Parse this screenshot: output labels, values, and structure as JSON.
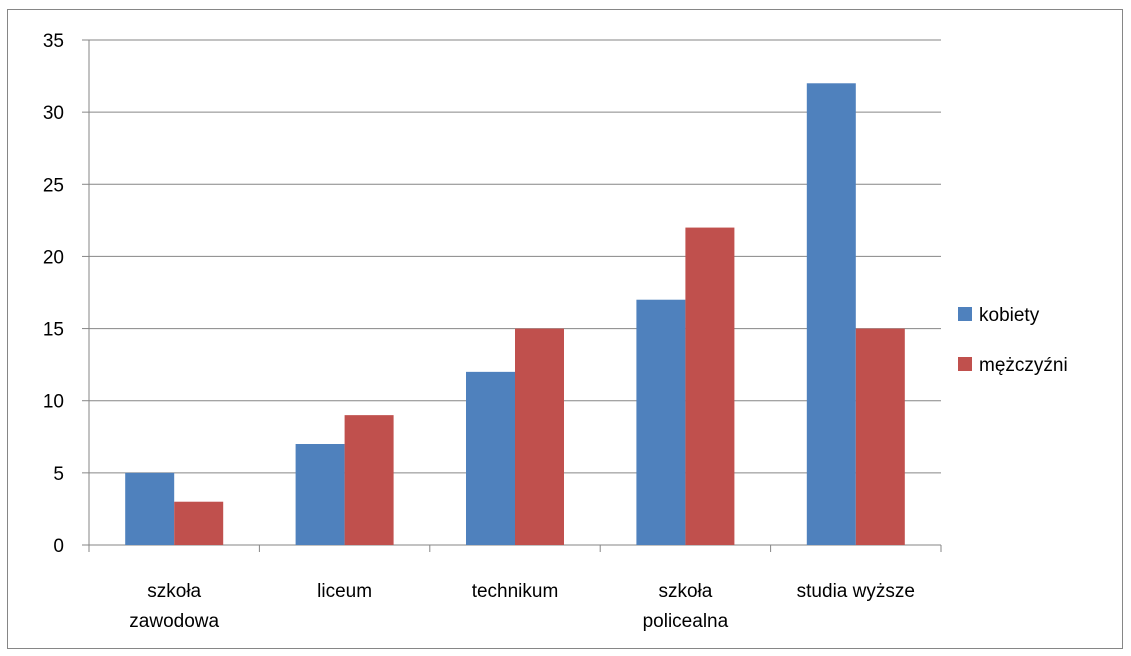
{
  "chart_data": {
    "type": "bar",
    "categories": [
      [
        "szkoła",
        "zawodowa"
      ],
      [
        "liceum"
      ],
      [
        "technikum"
      ],
      [
        "szkoła",
        "policealna"
      ],
      [
        "studia wyższe"
      ]
    ],
    "series": [
      {
        "name": "kobiety",
        "color": "#4F81BD",
        "values": [
          5,
          7,
          12,
          17,
          32
        ]
      },
      {
        "name": "mężczyźni",
        "color": "#C0504D",
        "values": [
          3,
          9,
          15,
          22,
          15
        ]
      }
    ],
    "ylim": [
      0,
      35
    ],
    "yticks": [
      0,
      5,
      10,
      15,
      20,
      25,
      30,
      35
    ],
    "grid": true,
    "legend": "right",
    "gridline_color": "#868686"
  }
}
